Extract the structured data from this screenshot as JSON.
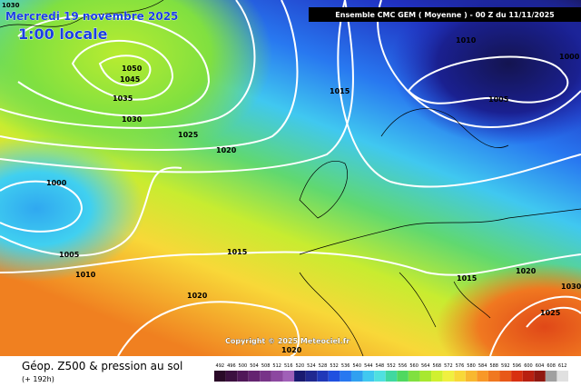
{
  "header": {
    "date": "Mercredi 19 novembre 2025",
    "time": "1:00 locale",
    "model": "Ensemble CMC GEM  ( Moyenne )  - 00 Z du 11/11/2025"
  },
  "isobar_labels": [
    1030,
    1050,
    1045,
    1035,
    1030,
    1025,
    1020,
    1015,
    1010,
    1005,
    1000,
    1000,
    1005,
    1010,
    1015,
    1020,
    1015,
    1020,
    1030,
    1025,
    1020
  ],
  "copyright": "Copyright © 2025 Meteociel.fr",
  "footer": {
    "title": "Géop. Z500 & pression au sol",
    "lead": "(+ 192h)"
  },
  "colorbar": {
    "labels": [
      492,
      496,
      500,
      504,
      508,
      512,
      516,
      520,
      524,
      528,
      532,
      536,
      540,
      544,
      548,
      552,
      556,
      560,
      564,
      568,
      572,
      576,
      580,
      584,
      588,
      592,
      596,
      600,
      604,
      608,
      612
    ],
    "colors": [
      "#2a0a28",
      "#3c1040",
      "#501858",
      "#642470",
      "#783488",
      "#8c48a0",
      "#a060b8",
      "#1a1a70",
      "#202890",
      "#2038b8",
      "#2050e0",
      "#2878f0",
      "#30a0f0",
      "#40c8f0",
      "#50e0e0",
      "#40d8a0",
      "#50d860",
      "#80e040",
      "#a8e830",
      "#d0f030",
      "#f0f040",
      "#f8d838",
      "#f8b830",
      "#f89828",
      "#f07820",
      "#e85818",
      "#d83010",
      "#b82010",
      "#901810",
      "#a0a0a0",
      "#e0e0e0"
    ]
  }
}
